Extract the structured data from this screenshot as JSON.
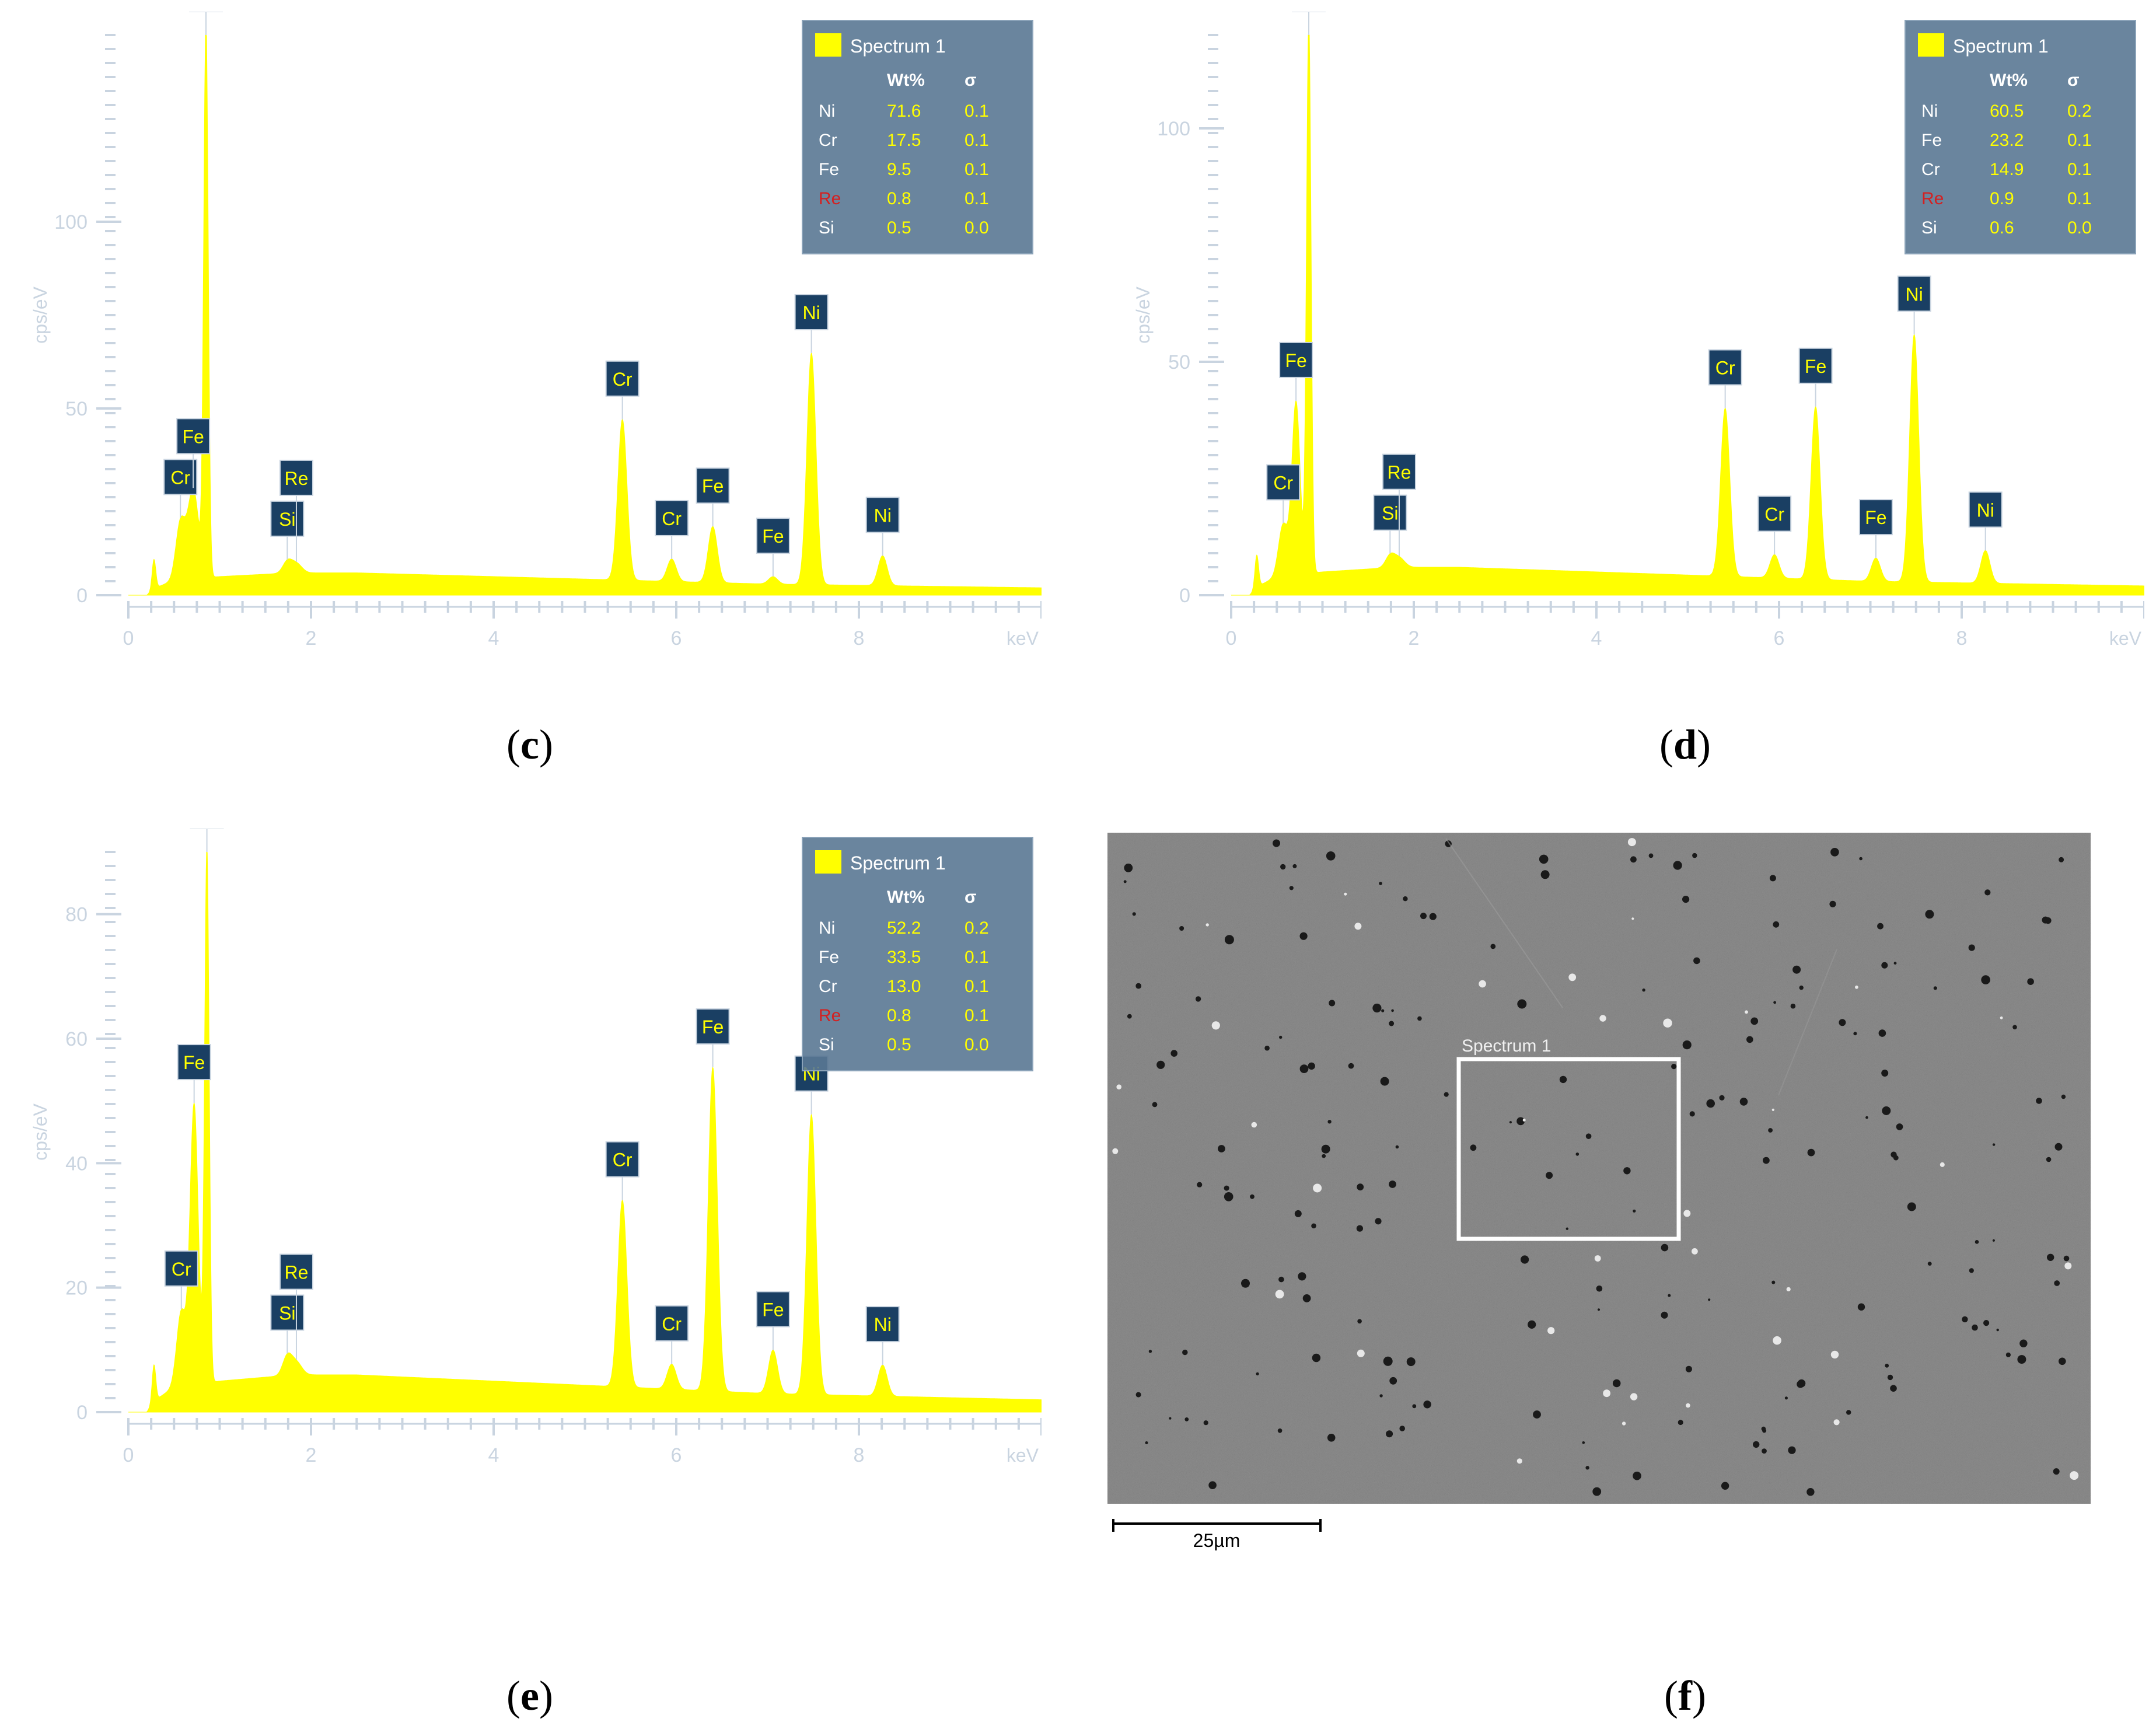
{
  "captions": {
    "c": "c",
    "d": "d",
    "e": "e",
    "f": "f"
  },
  "colors": {
    "panel_bg": "#1e4d78",
    "panel_bg_dark": "#163a5c",
    "spectrum": "#ffff00",
    "axis_text": "#c9d4e0",
    "legend_bg": "#5a7893",
    "re_label": "#d42020"
  },
  "chart_data": [
    {
      "panel": "c",
      "type": "area",
      "xlabel": "keV",
      "ylabel": "cps/eV",
      "xlim": [
        0,
        10
      ],
      "ylim": [
        0,
        150
      ],
      "xticks": [
        0,
        2,
        4,
        6,
        8
      ],
      "yticks": [
        0,
        50,
        100
      ],
      "legend": {
        "title": "Spectrum 1",
        "col_wt": "Wt%",
        "col_sigma": "σ",
        "rows": [
          {
            "el": "Ni",
            "wt": "71.6",
            "sigma": "0.1"
          },
          {
            "el": "Cr",
            "wt": "17.5",
            "sigma": "0.1"
          },
          {
            "el": "Fe",
            "wt": "9.5",
            "sigma": "0.1"
          },
          {
            "el": "Re",
            "wt": "0.8",
            "sigma": "0.1"
          },
          {
            "el": "Si",
            "wt": "0.5",
            "sigma": "0.0"
          }
        ]
      },
      "background": [
        [
          0.2,
          0
        ],
        [
          0.3,
          2
        ],
        [
          0.5,
          4
        ],
        [
          1.0,
          5
        ],
        [
          1.4,
          5.5
        ],
        [
          1.8,
          6
        ],
        [
          2.5,
          6
        ],
        [
          4,
          5
        ],
        [
          5.5,
          4
        ],
        [
          7,
          3
        ],
        [
          8.5,
          2.5
        ],
        [
          10,
          2
        ]
      ],
      "peaks": [
        {
          "label": "Ni",
          "x": 0.85,
          "y": 148,
          "w": 0.025
        },
        {
          "label": "Cr",
          "x": 0.57,
          "y": 15,
          "w": 0.05
        },
        {
          "label": "Fe",
          "x": 0.71,
          "y": 24,
          "w": 0.06
        },
        {
          "label": "",
          "x": 0.28,
          "y": 8,
          "w": 0.02
        },
        {
          "label": "Si",
          "x": 1.74,
          "y": 3,
          "w": 0.05
        },
        {
          "label": "Re",
          "x": 1.84,
          "y": 2.5,
          "w": 0.06
        },
        {
          "label": "Cr",
          "x": 5.41,
          "y": 43,
          "w": 0.05
        },
        {
          "label": "Cr",
          "x": 5.95,
          "y": 6,
          "w": 0.05
        },
        {
          "label": "Fe",
          "x": 6.4,
          "y": 15,
          "w": 0.05
        },
        {
          "label": "Fe",
          "x": 7.06,
          "y": 2,
          "w": 0.05
        },
        {
          "label": "Ni",
          "x": 7.48,
          "y": 62,
          "w": 0.05
        },
        {
          "label": "Ni",
          "x": 8.26,
          "y": 8,
          "w": 0.05
        }
      ]
    },
    {
      "panel": "d",
      "type": "area",
      "xlabel": "keV",
      "ylabel": "cps/eV",
      "xlim": [
        0,
        10
      ],
      "ylim": [
        0,
        120
      ],
      "xticks": [
        0,
        2,
        4,
        6,
        8
      ],
      "yticks": [
        0,
        50,
        100
      ],
      "legend": {
        "title": "Spectrum 1",
        "col_wt": "Wt%",
        "col_sigma": "σ",
        "rows": [
          {
            "el": "Ni",
            "wt": "60.5",
            "sigma": "0.2"
          },
          {
            "el": "Fe",
            "wt": "23.2",
            "sigma": "0.1"
          },
          {
            "el": "Cr",
            "wt": "14.9",
            "sigma": "0.1"
          },
          {
            "el": "Re",
            "wt": "0.9",
            "sigma": "0.1"
          },
          {
            "el": "Si",
            "wt": "0.6",
            "sigma": "0.0"
          }
        ]
      },
      "background": [
        [
          0.2,
          0
        ],
        [
          0.3,
          2
        ],
        [
          0.5,
          4
        ],
        [
          1.0,
          5
        ],
        [
          1.4,
          5.5
        ],
        [
          1.8,
          6
        ],
        [
          2.5,
          6
        ],
        [
          4,
          5
        ],
        [
          5.5,
          4
        ],
        [
          7,
          3
        ],
        [
          8.5,
          2.5
        ],
        [
          10,
          2
        ]
      ],
      "peaks": [
        {
          "label": "Ni",
          "x": 0.85,
          "y": 119,
          "w": 0.025
        },
        {
          "label": "Fe",
          "x": 0.71,
          "y": 37,
          "w": 0.045
        },
        {
          "label": "Cr",
          "x": 0.57,
          "y": 11,
          "w": 0.05
        },
        {
          "label": "",
          "x": 0.28,
          "y": 7,
          "w": 0.02
        },
        {
          "label": "Si",
          "x": 1.74,
          "y": 2.5,
          "w": 0.05
        },
        {
          "label": "Re",
          "x": 1.84,
          "y": 2,
          "w": 0.06
        },
        {
          "label": "Cr",
          "x": 5.41,
          "y": 36,
          "w": 0.05
        },
        {
          "label": "Cr",
          "x": 5.95,
          "y": 5,
          "w": 0.05
        },
        {
          "label": "Fe",
          "x": 6.4,
          "y": 37,
          "w": 0.05
        },
        {
          "label": "Fe",
          "x": 7.06,
          "y": 5,
          "w": 0.05
        },
        {
          "label": "Ni",
          "x": 7.48,
          "y": 53,
          "w": 0.05
        },
        {
          "label": "Ni",
          "x": 8.26,
          "y": 7,
          "w": 0.05
        }
      ]
    },
    {
      "panel": "e",
      "type": "area",
      "xlabel": "keV",
      "ylabel": "cps/eV",
      "xlim": [
        0,
        10
      ],
      "ylim": [
        0,
        90
      ],
      "xticks": [
        0,
        2,
        4,
        6,
        8
      ],
      "yticks": [
        0,
        20,
        40,
        60,
        80
      ],
      "legend": {
        "title": "Spectrum 1",
        "col_wt": "Wt%",
        "col_sigma": "σ",
        "rows": [
          {
            "el": "Ni",
            "wt": "52.2",
            "sigma": "0.2"
          },
          {
            "el": "Fe",
            "wt": "33.5",
            "sigma": "0.1"
          },
          {
            "el": "Cr",
            "wt": "13.0",
            "sigma": "0.1"
          },
          {
            "el": "Re",
            "wt": "0.8",
            "sigma": "0.1"
          },
          {
            "el": "Si",
            "wt": "0.5",
            "sigma": "0.0"
          }
        ]
      },
      "background": [
        [
          0.2,
          0
        ],
        [
          0.3,
          2
        ],
        [
          0.5,
          4
        ],
        [
          1.0,
          5
        ],
        [
          1.4,
          5.5
        ],
        [
          1.8,
          6
        ],
        [
          2.5,
          6
        ],
        [
          4,
          5
        ],
        [
          5.5,
          4
        ],
        [
          7,
          3
        ],
        [
          8.5,
          2.5
        ],
        [
          10,
          2
        ]
      ],
      "peaks": [
        {
          "label": "Ni",
          "x": 0.86,
          "y": 86,
          "w": 0.025
        },
        {
          "label": "Fe",
          "x": 0.72,
          "y": 45,
          "w": 0.045
        },
        {
          "label": "Cr",
          "x": 0.58,
          "y": 12,
          "w": 0.05
        },
        {
          "label": "",
          "x": 0.28,
          "y": 6,
          "w": 0.02
        },
        {
          "label": "Si",
          "x": 1.74,
          "y": 3,
          "w": 0.05
        },
        {
          "label": "Re",
          "x": 1.84,
          "y": 2,
          "w": 0.06
        },
        {
          "label": "Cr",
          "x": 5.41,
          "y": 30,
          "w": 0.05
        },
        {
          "label": "Cr",
          "x": 5.95,
          "y": 4,
          "w": 0.05
        },
        {
          "label": "Fe",
          "x": 6.4,
          "y": 52,
          "w": 0.05
        },
        {
          "label": "Fe",
          "x": 7.06,
          "y": 7,
          "w": 0.05
        },
        {
          "label": "Ni",
          "x": 7.48,
          "y": 45,
          "w": 0.05
        },
        {
          "label": "Ni",
          "x": 8.26,
          "y": 5,
          "w": 0.05
        }
      ]
    }
  ],
  "sem": {
    "box_label": "Spectrum 1",
    "scale_bar_label": "25µm"
  }
}
